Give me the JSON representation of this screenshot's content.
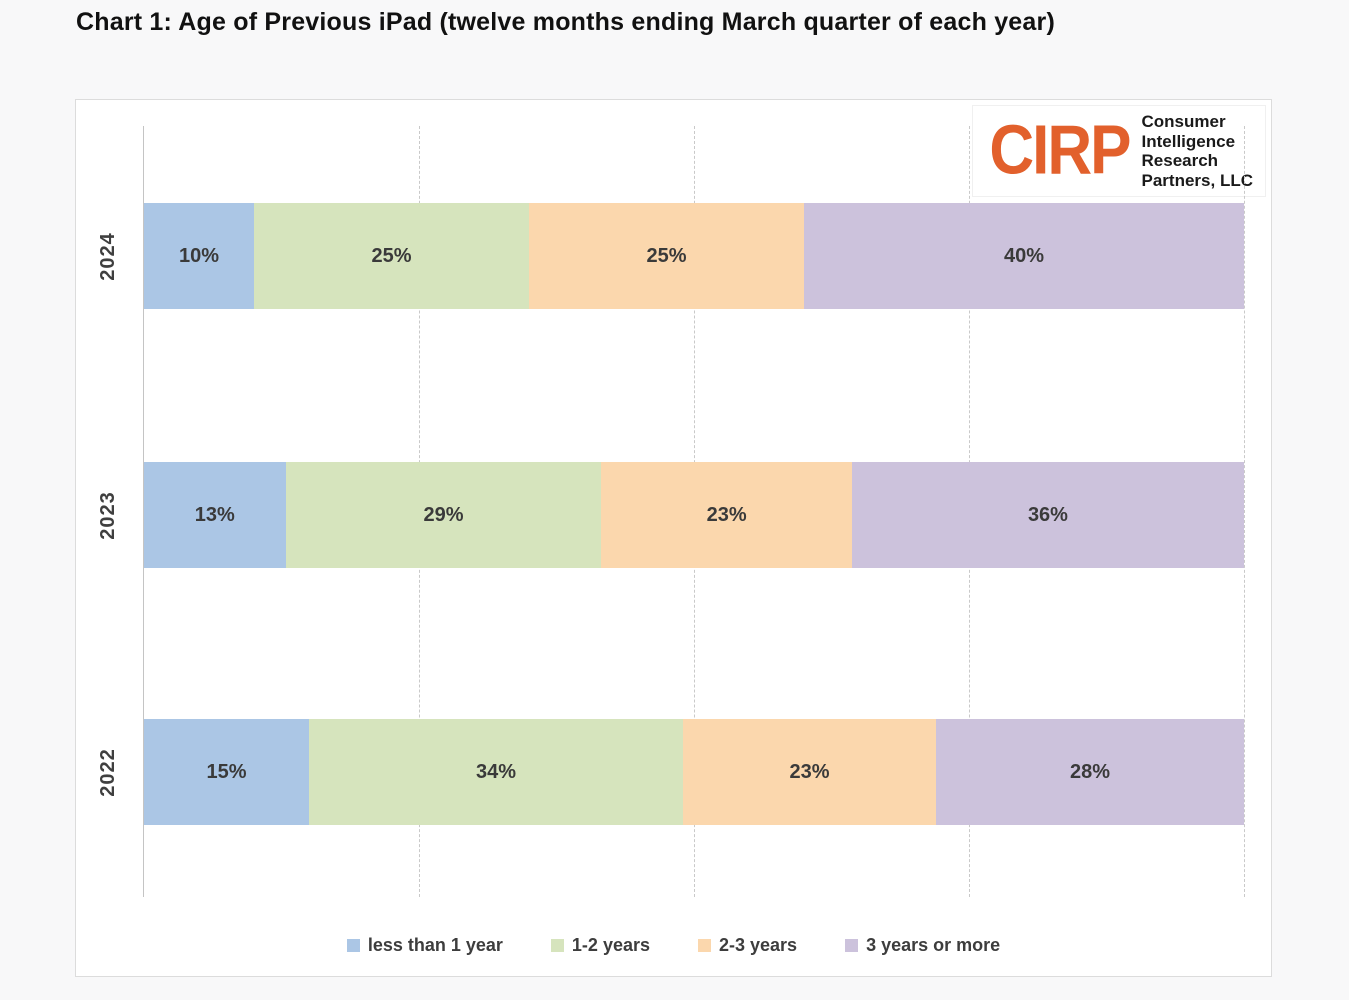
{
  "page": {
    "title": "Chart 1: Age of Previous iPad (twelve months ending March quarter of each year)"
  },
  "logo": {
    "acronym": "CIRP",
    "accent_color": "#e2602c",
    "name_lines": [
      "Consumer",
      "Intelligence",
      "Research",
      "Partners, LLC"
    ]
  },
  "chart_data": {
    "type": "bar",
    "orientation": "horizontal",
    "stacked": true,
    "title": "Chart 1: Age of Previous iPad (twelve months ending March quarter of each year)",
    "categories": [
      "2024",
      "2023",
      "2022"
    ],
    "series": [
      {
        "name": "less than 1 year",
        "color": "#abc6e5",
        "values": [
          10,
          13,
          15
        ]
      },
      {
        "name": "1-2 years",
        "color": "#d6e4bd",
        "values": [
          25,
          29,
          34
        ]
      },
      {
        "name": "2-3 years",
        "color": "#fbd7ad",
        "values": [
          25,
          23,
          23
        ]
      },
      {
        "name": "3 years or more",
        "color": "#ccc2dc",
        "values": [
          40,
          36,
          28
        ]
      }
    ],
    "value_suffix": "%",
    "xlim": [
      0,
      100
    ],
    "gridlines_percent": [
      25,
      50,
      75,
      100
    ],
    "grid": true,
    "legend_position": "bottom"
  }
}
